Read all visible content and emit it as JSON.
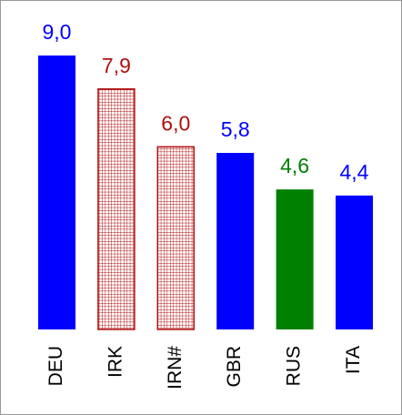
{
  "chart_data": {
    "type": "bar",
    "categories": [
      "DEU",
      "IRK",
      "IRN#",
      "GBR",
      "RUS",
      "ITA"
    ],
    "values": [
      9.0,
      7.9,
      6.0,
      5.8,
      4.6,
      4.4
    ],
    "value_labels": [
      "9,0",
      "7,9",
      "6,0",
      "5,8",
      "4,6",
      "4,4"
    ],
    "colors": [
      "#0000ff",
      "#b01010",
      "#b01010",
      "#0000ff",
      "#008000",
      "#0000ff"
    ],
    "hatched": [
      false,
      true,
      true,
      false,
      false,
      false
    ]
  }
}
